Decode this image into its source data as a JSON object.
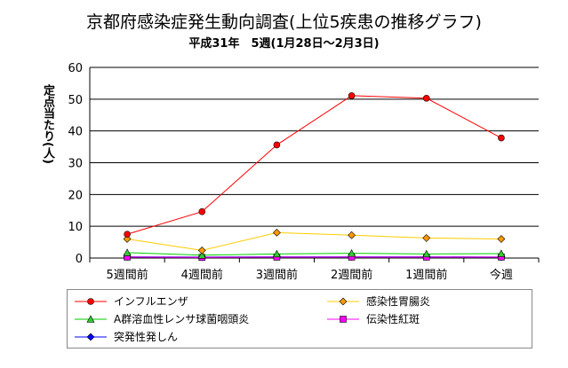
{
  "title": "京都府感染症発生動向調査(上位5疾患の推移グラフ)",
  "subtitle": "平成31年　5週(1月28日〜2月3日)",
  "chart_data": {
    "type": "line",
    "ylabel": "定点当たり(人)",
    "ylim": [
      0,
      60
    ],
    "yticks": [
      0,
      10,
      20,
      30,
      40,
      50,
      60
    ],
    "grid": true,
    "legend_position": "bottom",
    "categories": [
      "5週間前",
      "4週間前",
      "3週間前",
      "2週間前",
      "1週間前",
      "今週"
    ],
    "series": [
      {
        "name": "インフルエンザ",
        "color": "#ff0000",
        "marker": "circle",
        "marker_color": "#ff0000",
        "values": [
          7.5,
          14.6,
          35.6,
          51.1,
          50.3,
          37.8
        ]
      },
      {
        "name": "感染性胃腸炎",
        "color": "#ffcc00",
        "marker": "diamond",
        "marker_color": "#ff9900",
        "values": [
          6.0,
          2.4,
          8.0,
          7.2,
          6.3,
          6.0
        ]
      },
      {
        "name": "A群溶血性レンサ球菌咽頭炎",
        "color": "#00cc00",
        "marker": "triangle",
        "marker_color": "#33cc33",
        "values": [
          1.7,
          0.9,
          1.3,
          1.5,
          1.3,
          1.4
        ]
      },
      {
        "name": "伝染性紅斑",
        "color": "#ff00ff",
        "marker": "square",
        "marker_color": "#ff00ff",
        "values": [
          0.3,
          0.2,
          0.3,
          0.3,
          0.3,
          0.3
        ]
      },
      {
        "name": "突発性発しん",
        "color": "#0000ff",
        "marker": "diamond",
        "marker_color": "#0000ff",
        "values": [
          0.4,
          0.3,
          0.4,
          0.4,
          0.4,
          0.3
        ]
      }
    ]
  }
}
